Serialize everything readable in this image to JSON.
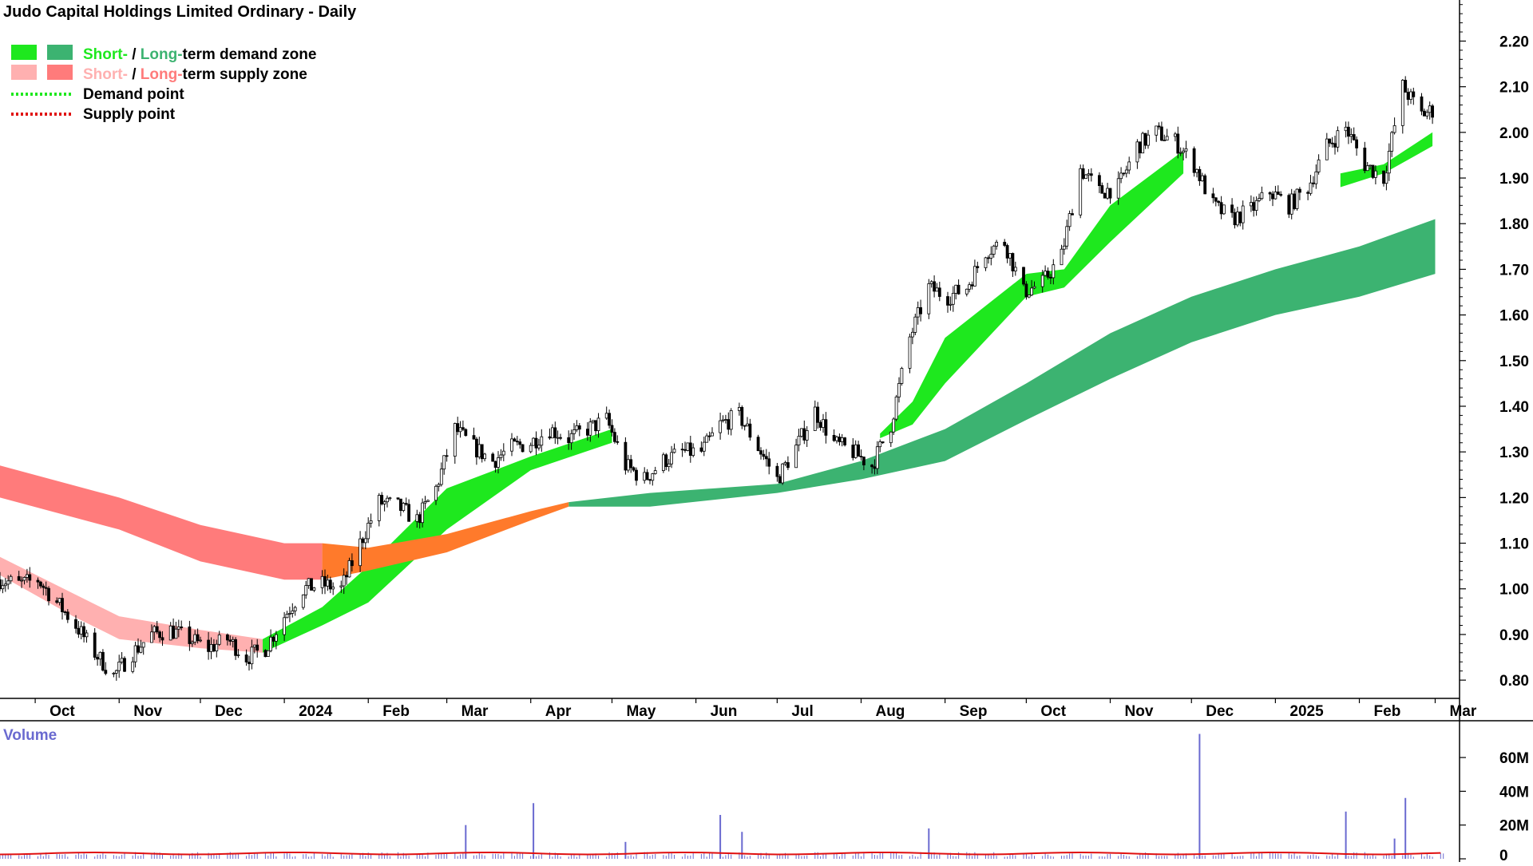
{
  "chart_data": {
    "type": "line",
    "title": "Judo Capital Holdings Limited Ordinary - Daily",
    "colors": {
      "short_demand": "#1ee81e",
      "long_demand": "#3cb371",
      "short_supply": "#ffb0b0",
      "long_supply": "#ff7b7b",
      "transition": "#ff7a2b",
      "candle": "#000000",
      "volume": "#6a6ad0",
      "volume_avg": "#e01010",
      "volume_label": "#6a6ad0"
    },
    "legend": {
      "items": [
        {
          "prefix": "Short-",
          "sep": " / ",
          "mid": "Long-",
          "suffix": "term demand zone",
          "prefix_color": "#1ee81e",
          "mid_color": "#3cb371",
          "swatch1": "#1ee81e",
          "swatch2": "#3cb371"
        },
        {
          "prefix": "Short-",
          "sep": " / ",
          "mid": "Long-",
          "suffix": "term supply zone",
          "prefix_color": "#ffb0b0",
          "mid_color": "#ff7b7b",
          "swatch1": "#ffb0b0",
          "swatch2": "#ff7b7b"
        },
        {
          "label": "Demand point",
          "dotted_color": "#1ee81e"
        },
        {
          "label": "Supply point",
          "dotted_color": "#e01010"
        }
      ],
      "placement": "top-left"
    },
    "x_axis": {
      "ticks": [
        "Oct",
        "Nov",
        "Dec",
        "2024",
        "Feb",
        "Mar",
        "Apr",
        "May",
        "Jun",
        "Jul",
        "Aug",
        "Sep",
        "Oct",
        "Nov",
        "Dec",
        "2025",
        "Feb",
        "Mar"
      ],
      "tick_dates": [
        "2023-10-01",
        "2023-11-01",
        "2023-12-01",
        "2024-01-01",
        "2024-02-01",
        "2024-03-01",
        "2024-04-01",
        "2024-05-01",
        "2024-06-01",
        "2024-07-01",
        "2024-08-01",
        "2024-09-01",
        "2024-10-01",
        "2024-11-01",
        "2024-12-01",
        "2025-01-01",
        "2025-02-01",
        "2025-03-01"
      ],
      "range": [
        "2023-09-18",
        "2025-03-10"
      ]
    },
    "y_axis": {
      "ticks": [
        "0.80",
        "0.90",
        "1.00",
        "1.10",
        "1.20",
        "1.30",
        "1.40",
        "1.50",
        "1.60",
        "1.70",
        "1.80",
        "1.90",
        "2.00",
        "2.10",
        "2.20"
      ],
      "ylim": [
        0.76,
        2.29
      ],
      "position": "right"
    },
    "volume_axis": {
      "label": "Volume",
      "ticks": [
        "0",
        "20M",
        "40M",
        "60M"
      ],
      "tick_values": [
        0,
        20,
        40,
        60
      ],
      "ylim": [
        0,
        78
      ]
    },
    "price_series": [
      {
        "date": "2023-09-18",
        "close": 1.02
      },
      {
        "date": "2023-09-25",
        "close": 1.01
      },
      {
        "date": "2023-10-02",
        "close": 1.02
      },
      {
        "date": "2023-10-09",
        "close": 0.97
      },
      {
        "date": "2023-10-16",
        "close": 0.92
      },
      {
        "date": "2023-10-23",
        "close": 0.86
      },
      {
        "date": "2023-10-30",
        "close": 0.81
      },
      {
        "date": "2023-11-06",
        "close": 0.86
      },
      {
        "date": "2023-11-13",
        "close": 0.9
      },
      {
        "date": "2023-11-20",
        "close": 0.91
      },
      {
        "date": "2023-11-27",
        "close": 0.89
      },
      {
        "date": "2023-12-04",
        "close": 0.87
      },
      {
        "date": "2023-12-11",
        "close": 0.89
      },
      {
        "date": "2023-12-18",
        "close": 0.85
      },
      {
        "date": "2023-12-25",
        "close": 0.87
      },
      {
        "date": "2024-01-01",
        "close": 0.94
      },
      {
        "date": "2024-01-08",
        "close": 1.0
      },
      {
        "date": "2024-01-15",
        "close": 1.01
      },
      {
        "date": "2024-01-22",
        "close": 1.0
      },
      {
        "date": "2024-01-29",
        "close": 1.1
      },
      {
        "date": "2024-02-05",
        "close": 1.19
      },
      {
        "date": "2024-02-12",
        "close": 1.18
      },
      {
        "date": "2024-02-19",
        "close": 1.15
      },
      {
        "date": "2024-02-26",
        "close": 1.22
      },
      {
        "date": "2024-03-04",
        "close": 1.35
      },
      {
        "date": "2024-03-11",
        "close": 1.31
      },
      {
        "date": "2024-03-18",
        "close": 1.28
      },
      {
        "date": "2024-03-25",
        "close": 1.31
      },
      {
        "date": "2024-04-01",
        "close": 1.32
      },
      {
        "date": "2024-04-08",
        "close": 1.35
      },
      {
        "date": "2024-04-15",
        "close": 1.33
      },
      {
        "date": "2024-04-22",
        "close": 1.35
      },
      {
        "date": "2024-04-29",
        "close": 1.37
      },
      {
        "date": "2024-05-06",
        "close": 1.27
      },
      {
        "date": "2024-05-13",
        "close": 1.24
      },
      {
        "date": "2024-05-20",
        "close": 1.28
      },
      {
        "date": "2024-05-27",
        "close": 1.3
      },
      {
        "date": "2024-06-03",
        "close": 1.3
      },
      {
        "date": "2024-06-10",
        "close": 1.36
      },
      {
        "date": "2024-06-17",
        "close": 1.38
      },
      {
        "date": "2024-06-24",
        "close": 1.31
      },
      {
        "date": "2024-07-01",
        "close": 1.24
      },
      {
        "date": "2024-07-08",
        "close": 1.31
      },
      {
        "date": "2024-07-15",
        "close": 1.39
      },
      {
        "date": "2024-07-22",
        "close": 1.32
      },
      {
        "date": "2024-07-29",
        "close": 1.3
      },
      {
        "date": "2024-08-05",
        "close": 1.27
      },
      {
        "date": "2024-08-12",
        "close": 1.36
      },
      {
        "date": "2024-08-19",
        "close": 1.55
      },
      {
        "date": "2024-08-26",
        "close": 1.66
      },
      {
        "date": "2024-09-02",
        "close": 1.64
      },
      {
        "date": "2024-09-09",
        "close": 1.66
      },
      {
        "date": "2024-09-16",
        "close": 1.74
      },
      {
        "date": "2024-09-23",
        "close": 1.76
      },
      {
        "date": "2024-09-30",
        "close": 1.65
      },
      {
        "date": "2024-10-07",
        "close": 1.67
      },
      {
        "date": "2024-10-14",
        "close": 1.73
      },
      {
        "date": "2024-10-21",
        "close": 1.92
      },
      {
        "date": "2024-10-28",
        "close": 1.87
      },
      {
        "date": "2024-11-04",
        "close": 1.88
      },
      {
        "date": "2024-11-11",
        "close": 1.97
      },
      {
        "date": "2024-11-18",
        "close": 2.0
      },
      {
        "date": "2024-11-25",
        "close": 1.98
      },
      {
        "date": "2024-12-02",
        "close": 1.93
      },
      {
        "date": "2024-12-09",
        "close": 1.84
      },
      {
        "date": "2024-12-16",
        "close": 1.81
      },
      {
        "date": "2024-12-23",
        "close": 1.83
      },
      {
        "date": "2024-12-30",
        "close": 1.87
      },
      {
        "date": "2025-01-06",
        "close": 1.84
      },
      {
        "date": "2025-01-13",
        "close": 1.88
      },
      {
        "date": "2025-01-20",
        "close": 1.97
      },
      {
        "date": "2025-01-27",
        "close": 2.01
      },
      {
        "date": "2025-02-03",
        "close": 1.93
      },
      {
        "date": "2025-02-10",
        "close": 1.9
      },
      {
        "date": "2025-02-17",
        "close": 2.1
      },
      {
        "date": "2025-02-24",
        "close": 2.04
      },
      {
        "date": "2025-03-01",
        "close": 2.05
      }
    ],
    "zones": [
      {
        "type": "long_supply",
        "points": [
          {
            "date": "2023-09-18",
            "upper": 1.27,
            "lower": 1.2
          },
          {
            "date": "2023-11-01",
            "upper": 1.2,
            "lower": 1.13
          },
          {
            "date": "2023-12-01",
            "upper": 1.14,
            "lower": 1.06
          },
          {
            "date": "2024-01-01",
            "upper": 1.1,
            "lower": 1.02
          },
          {
            "date": "2024-01-15",
            "upper": 1.1,
            "lower": 1.02
          }
        ]
      },
      {
        "type": "short_supply",
        "points": [
          {
            "date": "2023-09-18",
            "upper": 1.07,
            "lower": 1.03
          },
          {
            "date": "2023-10-15",
            "upper": 0.99,
            "lower": 0.94
          },
          {
            "date": "2023-11-01",
            "upper": 0.94,
            "lower": 0.89
          },
          {
            "date": "2023-12-01",
            "upper": 0.91,
            "lower": 0.87
          },
          {
            "date": "2023-12-24",
            "upper": 0.89,
            "lower": 0.86
          }
        ]
      },
      {
        "type": "short_demand",
        "points": [
          {
            "date": "2023-12-24",
            "upper": 0.89,
            "lower": 0.86
          },
          {
            "date": "2024-01-15",
            "upper": 0.96,
            "lower": 0.92
          },
          {
            "date": "2024-02-01",
            "upper": 1.05,
            "lower": 0.97
          },
          {
            "date": "2024-03-01",
            "upper": 1.22,
            "lower": 1.13
          },
          {
            "date": "2024-04-01",
            "upper": 1.29,
            "lower": 1.26
          },
          {
            "date": "2024-05-01",
            "upper": 1.35,
            "lower": 1.32
          }
        ]
      },
      {
        "type": "long_demand",
        "points": [
          {
            "date": "2024-04-15",
            "upper": 1.19,
            "lower": 1.18
          },
          {
            "date": "2024-05-15",
            "upper": 1.21,
            "lower": 1.18
          },
          {
            "date": "2024-07-01",
            "upper": 1.23,
            "lower": 1.21
          },
          {
            "date": "2024-08-01",
            "upper": 1.28,
            "lower": 1.24
          },
          {
            "date": "2024-09-01",
            "upper": 1.35,
            "lower": 1.28
          },
          {
            "date": "2024-10-01",
            "upper": 1.45,
            "lower": 1.37
          },
          {
            "date": "2024-11-01",
            "upper": 1.56,
            "lower": 1.46
          },
          {
            "date": "2024-12-01",
            "upper": 1.64,
            "lower": 1.54
          },
          {
            "date": "2025-01-01",
            "upper": 1.7,
            "lower": 1.6
          },
          {
            "date": "2025-02-01",
            "upper": 1.75,
            "lower": 1.64
          },
          {
            "date": "2025-03-01",
            "upper": 1.81,
            "lower": 1.69
          }
        ]
      },
      {
        "type": "short_demand",
        "points": [
          {
            "date": "2024-08-08",
            "upper": 1.34,
            "lower": 1.33
          },
          {
            "date": "2024-08-20",
            "upper": 1.41,
            "lower": 1.36
          },
          {
            "date": "2024-09-01",
            "upper": 1.55,
            "lower": 1.45
          },
          {
            "date": "2024-10-01",
            "upper": 1.69,
            "lower": 1.64
          },
          {
            "date": "2024-10-15",
            "upper": 1.7,
            "lower": 1.66
          },
          {
            "date": "2024-11-01",
            "upper": 1.84,
            "lower": 1.76
          },
          {
            "date": "2024-11-28",
            "upper": 1.96,
            "lower": 1.91
          }
        ]
      },
      {
        "type": "short_demand",
        "points": [
          {
            "date": "2025-01-25",
            "upper": 1.91,
            "lower": 1.88
          },
          {
            "date": "2025-02-10",
            "upper": 1.93,
            "lower": 1.91
          },
          {
            "date": "2025-02-28",
            "upper": 2.0,
            "lower": 1.97
          }
        ]
      }
    ],
    "volume_spikes": [
      {
        "date": "2024-03-08",
        "volume": 20
      },
      {
        "date": "2024-04-02",
        "volume": 33
      },
      {
        "date": "2024-05-06",
        "volume": 10
      },
      {
        "date": "2024-06-10",
        "volume": 26
      },
      {
        "date": "2024-06-18",
        "volume": 16
      },
      {
        "date": "2024-08-26",
        "volume": 18
      },
      {
        "date": "2024-12-04",
        "volume": 74
      },
      {
        "date": "2025-01-27",
        "volume": 28
      },
      {
        "date": "2025-02-14",
        "volume": 12
      },
      {
        "date": "2025-02-18",
        "volume": 36
      }
    ],
    "grid": false
  }
}
